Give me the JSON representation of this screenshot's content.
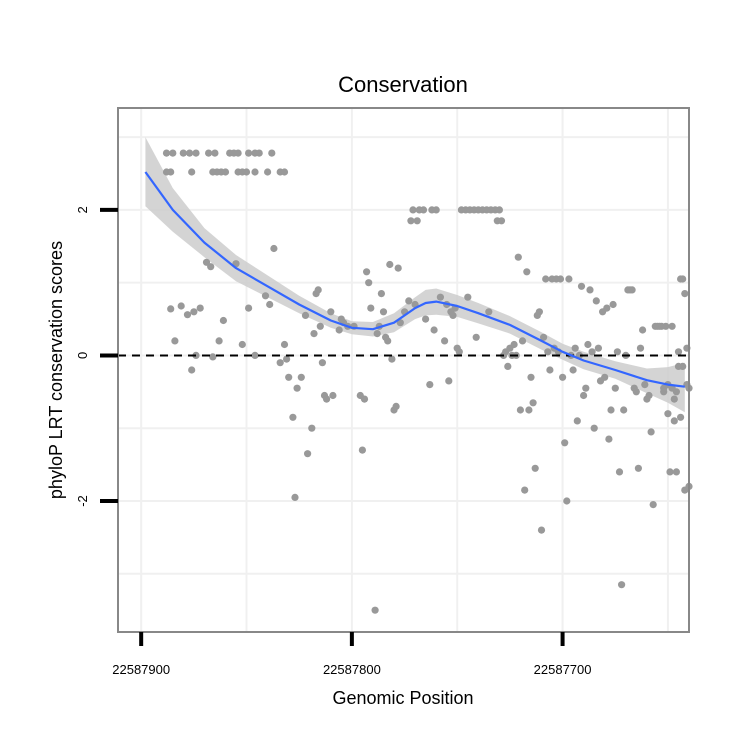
{
  "chart_data": {
    "type": "scatter",
    "title": "Conservation",
    "xlabel": "Genomic Position",
    "ylabel": "phyloP LRT conservation scores",
    "x_reversed": true,
    "xlim": [
      22587911,
      22587640
    ],
    "ylim": [
      -3.8,
      3.4
    ],
    "x_ticks": [
      22587900,
      22587800,
      22587700
    ],
    "x_tick_labels": [
      "22587900",
      "22587800",
      "22587700"
    ],
    "y_ticks": [
      2,
      0,
      -2
    ],
    "y_tick_labels": [
      "2",
      "0",
      "-2"
    ],
    "reference_line": {
      "y": 0,
      "style": "dashed"
    },
    "grid": true,
    "colors": {
      "points": "#999999",
      "smooth_line": "#3366FF",
      "confidence_band": "#cccccc",
      "panel_border": "#888888",
      "grid": "#f0f0f0"
    },
    "series": [
      {
        "name": "phyloP scores",
        "points": [
          [
            22587888,
            2.78
          ],
          [
            22587885,
            2.78
          ],
          [
            22587880,
            2.78
          ],
          [
            22587877,
            2.78
          ],
          [
            22587874,
            2.78
          ],
          [
            22587868,
            2.78
          ],
          [
            22587865,
            2.78
          ],
          [
            22587858,
            2.78
          ],
          [
            22587856,
            2.78
          ],
          [
            22587854,
            2.78
          ],
          [
            22587849,
            2.78
          ],
          [
            22587846,
            2.78
          ],
          [
            22587844,
            2.78
          ],
          [
            22587838,
            2.78
          ],
          [
            22587888,
            2.52
          ],
          [
            22587886,
            2.52
          ],
          [
            22587876,
            2.52
          ],
          [
            22587866,
            2.52
          ],
          [
            22587864,
            2.52
          ],
          [
            22587862,
            2.52
          ],
          [
            22587860,
            2.52
          ],
          [
            22587854,
            2.52
          ],
          [
            22587852,
            2.52
          ],
          [
            22587850,
            2.52
          ],
          [
            22587846,
            2.52
          ],
          [
            22587840,
            2.52
          ],
          [
            22587834,
            2.52
          ],
          [
            22587832,
            2.52
          ],
          [
            22587886,
            0.64
          ],
          [
            22587884,
            0.2
          ],
          [
            22587881,
            0.68
          ],
          [
            22587878,
            0.56
          ],
          [
            22587876,
            -0.2
          ],
          [
            22587875,
            0.6
          ],
          [
            22587874,
            0.0
          ],
          [
            22587872,
            0.65
          ],
          [
            22587869,
            1.28
          ],
          [
            22587867,
            1.22
          ],
          [
            22587866,
            -0.02
          ],
          [
            22587863,
            0.2
          ],
          [
            22587861,
            0.48
          ],
          [
            22587855,
            1.26
          ],
          [
            22587852,
            0.15
          ],
          [
            22587849,
            0.65
          ],
          [
            22587846,
            0.0
          ],
          [
            22587841,
            0.82
          ],
          [
            22587839,
            0.7
          ],
          [
            22587837,
            1.47
          ],
          [
            22587834,
            -0.1
          ],
          [
            22587832,
            0.15
          ],
          [
            22587831,
            -0.05
          ],
          [
            22587830,
            -0.3
          ],
          [
            22587828,
            -0.85
          ],
          [
            22587827,
            -1.95
          ],
          [
            22587826,
            -0.45
          ],
          [
            22587824,
            -0.3
          ],
          [
            22587822,
            0.55
          ],
          [
            22587821,
            -1.35
          ],
          [
            22587819,
            -1.0
          ],
          [
            22587818,
            0.3
          ],
          [
            22587817,
            0.85
          ],
          [
            22587816,
            0.9
          ],
          [
            22587815,
            0.4
          ],
          [
            22587814,
            -0.1
          ],
          [
            22587813,
            -0.55
          ],
          [
            22587812,
            -0.6
          ],
          [
            22587810,
            0.6
          ],
          [
            22587809,
            -0.55
          ],
          [
            22587806,
            0.35
          ],
          [
            22587805,
            0.5
          ],
          [
            22587804,
            0.45
          ],
          [
            22587802,
            0.4
          ],
          [
            22587799,
            0.4
          ],
          [
            22587796,
            -0.55
          ],
          [
            22587795,
            -1.3
          ],
          [
            22587794,
            -0.6
          ],
          [
            22587793,
            1.15
          ],
          [
            22587792,
            1.0
          ],
          [
            22587791,
            0.65
          ],
          [
            22587789,
            -3.5
          ],
          [
            22587788,
            0.3
          ],
          [
            22587787,
            0.4
          ],
          [
            22587786,
            0.85
          ],
          [
            22587785,
            0.6
          ],
          [
            22587784,
            0.25
          ],
          [
            22587783,
            0.2
          ],
          [
            22587782,
            1.25
          ],
          [
            22587781,
            -0.05
          ],
          [
            22587780,
            -0.75
          ],
          [
            22587779,
            -0.7
          ],
          [
            22587778,
            1.2
          ],
          [
            22587777,
            0.45
          ],
          [
            22587775,
            0.6
          ],
          [
            22587773,
            0.75
          ],
          [
            22587772,
            1.85
          ],
          [
            22587771,
            2.0
          ],
          [
            22587770,
            0.7
          ],
          [
            22587769,
            1.85
          ],
          [
            22587768,
            2.0
          ],
          [
            22587766,
            2.0
          ],
          [
            22587765,
            0.5
          ],
          [
            22587763,
            -0.4
          ],
          [
            22587762,
            2.0
          ],
          [
            22587761,
            0.35
          ],
          [
            22587760,
            2.0
          ],
          [
            22587758,
            0.8
          ],
          [
            22587756,
            0.2
          ],
          [
            22587755,
            0.7
          ],
          [
            22587754,
            -0.35
          ],
          [
            22587753,
            0.6
          ],
          [
            22587752,
            0.55
          ],
          [
            22587751,
            0.65
          ],
          [
            22587750,
            0.1
          ],
          [
            22587749,
            0.05
          ],
          [
            22587748,
            2.0
          ],
          [
            22587746,
            2.0
          ],
          [
            22587745,
            0.8
          ],
          [
            22587744,
            2.0
          ],
          [
            22587742,
            2.0
          ],
          [
            22587741,
            0.25
          ],
          [
            22587740,
            2.0
          ],
          [
            22587738,
            2.0
          ],
          [
            22587736,
            2.0
          ],
          [
            22587735,
            0.6
          ],
          [
            22587734,
            2.0
          ],
          [
            22587732,
            2.0
          ],
          [
            22587731,
            1.85
          ],
          [
            22587730,
            2.0
          ],
          [
            22587729,
            1.85
          ],
          [
            22587728,
            0.0
          ],
          [
            22587727,
            0.05
          ],
          [
            22587726,
            -0.15
          ],
          [
            22587725,
            0.1
          ],
          [
            22587724,
            0.0
          ],
          [
            22587723,
            0.15
          ],
          [
            22587722,
            0.0
          ],
          [
            22587721,
            1.35
          ],
          [
            22587720,
            -0.75
          ],
          [
            22587719,
            0.2
          ],
          [
            22587718,
            -1.85
          ],
          [
            22587717,
            1.15
          ],
          [
            22587716,
            -0.75
          ],
          [
            22587715,
            -0.3
          ],
          [
            22587714,
            -0.65
          ],
          [
            22587713,
            -1.55
          ],
          [
            22587712,
            0.55
          ],
          [
            22587711,
            0.6
          ],
          [
            22587710,
            -2.4
          ],
          [
            22587709,
            0.25
          ],
          [
            22587708,
            1.05
          ],
          [
            22587707,
            0.05
          ],
          [
            22587706,
            -0.2
          ],
          [
            22587705,
            1.05
          ],
          [
            22587704,
            0.1
          ],
          [
            22587703,
            1.05
          ],
          [
            22587702,
            0.05
          ],
          [
            22587701,
            1.05
          ],
          [
            22587700,
            -0.3
          ],
          [
            22587699,
            -1.2
          ],
          [
            22587698,
            -2.0
          ],
          [
            22587697,
            1.05
          ],
          [
            22587696,
            0.0
          ],
          [
            22587695,
            -0.2
          ],
          [
            22587694,
            0.1
          ],
          [
            22587693,
            -0.9
          ],
          [
            22587692,
            0.0
          ],
          [
            22587691,
            0.95
          ],
          [
            22587690,
            -0.55
          ],
          [
            22587689,
            -0.45
          ],
          [
            22587688,
            0.15
          ],
          [
            22587687,
            0.9
          ],
          [
            22587686,
            0.05
          ],
          [
            22587685,
            -1.0
          ],
          [
            22587684,
            0.75
          ],
          [
            22587683,
            0.1
          ],
          [
            22587682,
            -0.35
          ],
          [
            22587681,
            0.6
          ],
          [
            22587680,
            -0.3
          ],
          [
            22587679,
            0.65
          ],
          [
            22587678,
            -1.15
          ],
          [
            22587677,
            -0.75
          ],
          [
            22587676,
            0.7
          ],
          [
            22587675,
            -0.45
          ],
          [
            22587674,
            0.05
          ],
          [
            22587673,
            -1.6
          ],
          [
            22587672,
            -3.15
          ],
          [
            22587671,
            -0.75
          ],
          [
            22587670,
            0.0
          ],
          [
            22587669,
            0.9
          ],
          [
            22587668,
            0.9
          ],
          [
            22587667,
            0.9
          ],
          [
            22587666,
            -0.45
          ],
          [
            22587665,
            -0.5
          ],
          [
            22587664,
            -1.55
          ],
          [
            22587663,
            0.1
          ],
          [
            22587662,
            0.35
          ],
          [
            22587661,
            -0.4
          ],
          [
            22587660,
            -0.6
          ],
          [
            22587659,
            -0.55
          ],
          [
            22587658,
            -1.05
          ],
          [
            22587657,
            -2.05
          ],
          [
            22587656,
            0.4
          ],
          [
            22587655,
            0.4
          ],
          [
            22587654,
            0.4
          ],
          [
            22587653,
            0.4
          ],
          [
            22587652,
            -0.5
          ],
          [
            22587651,
            0.4
          ],
          [
            22587650,
            -0.4
          ],
          [
            22587649,
            -1.6
          ],
          [
            22587648,
            0.4
          ],
          [
            22587647,
            -0.6
          ],
          [
            22587646,
            -0.5
          ],
          [
            22587645,
            -0.15
          ],
          [
            22587644,
            -0.85
          ],
          [
            22587643,
            -0.15
          ],
          [
            22587642,
            0.85
          ],
          [
            22587641,
            -0.4
          ],
          [
            22587640,
            -0.45
          ],
          [
            22587652,
            -0.45
          ],
          [
            22587650,
            -0.8
          ],
          [
            22587648,
            -0.45
          ],
          [
            22587647,
            -0.9
          ],
          [
            22587646,
            -1.6
          ],
          [
            22587645,
            0.05
          ],
          [
            22587644,
            1.05
          ],
          [
            22587643,
            1.05
          ],
          [
            22587642,
            -1.85
          ],
          [
            22587641,
            0.1
          ],
          [
            22587640,
            -1.8
          ]
        ]
      }
    ],
    "smooth_fit": {
      "method": "loess",
      "x": [
        22587898,
        22587885,
        22587870,
        22587855,
        22587840,
        22587825,
        22587810,
        22587800,
        22587790,
        22587780,
        22587770,
        22587765,
        22587760,
        22587750,
        22587740,
        22587725,
        22587710,
        22587700,
        22587690,
        22587675,
        22587660,
        22587650,
        22587642
      ],
      "y": [
        2.52,
        2.0,
        1.55,
        1.2,
        0.95,
        0.7,
        0.48,
        0.38,
        0.36,
        0.45,
        0.65,
        0.72,
        0.74,
        0.68,
        0.58,
        0.42,
        0.2,
        0.05,
        -0.07,
        -0.2,
        -0.34,
        -0.4,
        -0.43
      ],
      "ci_upper": [
        3.0,
        2.3,
        1.75,
        1.38,
        1.1,
        0.82,
        0.58,
        0.47,
        0.46,
        0.58,
        0.8,
        0.9,
        0.92,
        0.83,
        0.72,
        0.54,
        0.32,
        0.16,
        0.05,
        -0.08,
        -0.18,
        -0.16,
        -0.1
      ],
      "ci_lower": [
        2.05,
        1.7,
        1.35,
        1.02,
        0.8,
        0.58,
        0.38,
        0.29,
        0.26,
        0.32,
        0.5,
        0.55,
        0.56,
        0.53,
        0.44,
        0.3,
        0.08,
        -0.06,
        -0.19,
        -0.32,
        -0.52,
        -0.65,
        -0.78
      ]
    }
  }
}
